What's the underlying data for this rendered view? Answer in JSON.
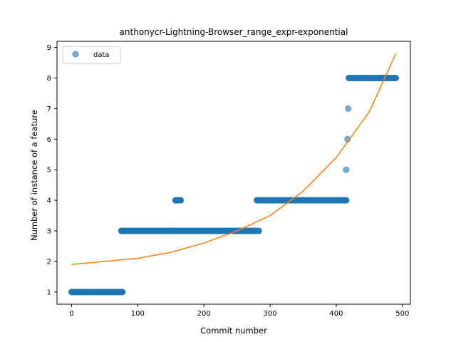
{
  "chart_data": {
    "type": "scatter",
    "title": "anthonycr-Lightning-Browser_range_expr-exponential",
    "xlabel": "Commit number",
    "ylabel": "Number of instance of a feature",
    "xlim": [
      -22,
      512
    ],
    "ylim": [
      0.6,
      9.2
    ],
    "xticks": [
      0,
      100,
      200,
      300,
      400,
      500
    ],
    "yticks": [
      1,
      2,
      3,
      4,
      5,
      6,
      7,
      8,
      9
    ],
    "grid": false,
    "legend": {
      "placement": "top-left",
      "entries": [
        "data"
      ]
    },
    "colors": {
      "data": "#1f77b4",
      "fit": "#ff7f0e"
    },
    "series": [
      {
        "name": "data",
        "kind": "scatter",
        "points": [
          [
            0,
            1
          ],
          [
            77,
            1
          ],
          [
            75,
            3
          ],
          [
            160,
            3
          ],
          [
            157,
            4
          ],
          [
            165,
            4
          ],
          [
            163,
            3
          ],
          [
            283,
            3
          ],
          [
            280,
            4
          ],
          [
            415,
            4
          ],
          [
            415,
            5
          ],
          [
            417,
            6
          ],
          [
            418,
            7
          ],
          [
            419,
            8
          ],
          [
            490,
            8
          ]
        ],
        "runs": [
          {
            "from": 0,
            "to": 77,
            "y": 1
          },
          {
            "from": 75,
            "to": 160,
            "y": 3
          },
          {
            "from": 157,
            "to": 165,
            "y": 4
          },
          {
            "from": 163,
            "to": 283,
            "y": 3
          },
          {
            "from": 280,
            "to": 415,
            "y": 4
          },
          {
            "from": 419,
            "to": 490,
            "y": 8
          }
        ]
      },
      {
        "kind": "line",
        "x": [
          0,
          50,
          100,
          150,
          200,
          250,
          300,
          350,
          400,
          450,
          490
        ],
        "y": [
          1.9,
          2.0,
          2.1,
          2.3,
          2.6,
          3.0,
          3.5,
          4.3,
          5.4,
          6.9,
          8.8
        ]
      }
    ]
  }
}
